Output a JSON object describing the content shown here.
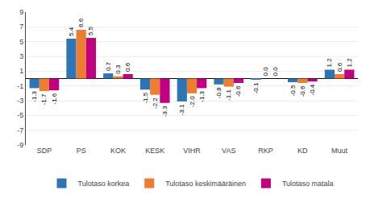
{
  "chart_data": {
    "type": "bar",
    "categories": [
      "SDP",
      "PS",
      "KOK",
      "KESK",
      "VIHR",
      "VAS",
      "RKP",
      "KD",
      "Muut"
    ],
    "series": [
      {
        "name": "Tulotaso korkea",
        "color": "#2E75B6",
        "values": [
          -1.3,
          5.4,
          0.7,
          -1.5,
          -3.1,
          -0.8,
          -0.1,
          -0.5,
          1.2
        ],
        "value_labels": [
          "-1.3",
          "5.4",
          "0.7",
          "-1.5",
          "-3.1",
          "-0.8",
          "-0.1",
          "-0.5",
          "1.2"
        ]
      },
      {
        "name": "Tulotaso keskimääräinen",
        "color": "#ED7D31",
        "values": [
          -1.7,
          6.6,
          0.3,
          -2.2,
          -2.0,
          -1.1,
          0.0,
          -0.6,
          0.6
        ],
        "value_labels": [
          "-1.7",
          "6.6",
          "0.3",
          "-2.2",
          "-2.0",
          "-1.1",
          "0.0",
          "-0.6",
          "0.6"
        ]
      },
      {
        "name": "Tulotaso matala",
        "color": "#C00080",
        "values": [
          -1.6,
          5.5,
          0.6,
          -3.3,
          -1.3,
          -0.6,
          0.0,
          -0.4,
          1.2
        ],
        "value_labels": [
          "-1.6",
          "5.5",
          "0.6",
          "-3.3",
          "-1.3",
          "-0.6",
          "0.0",
          "-0.4",
          "1.2"
        ]
      }
    ],
    "ylim": [
      -9,
      9
    ],
    "yticks": [
      -9,
      -7,
      -5,
      -3,
      -1,
      1,
      3,
      5,
      7,
      9
    ],
    "grid": true,
    "legend": "bottom",
    "data_labels": true
  }
}
